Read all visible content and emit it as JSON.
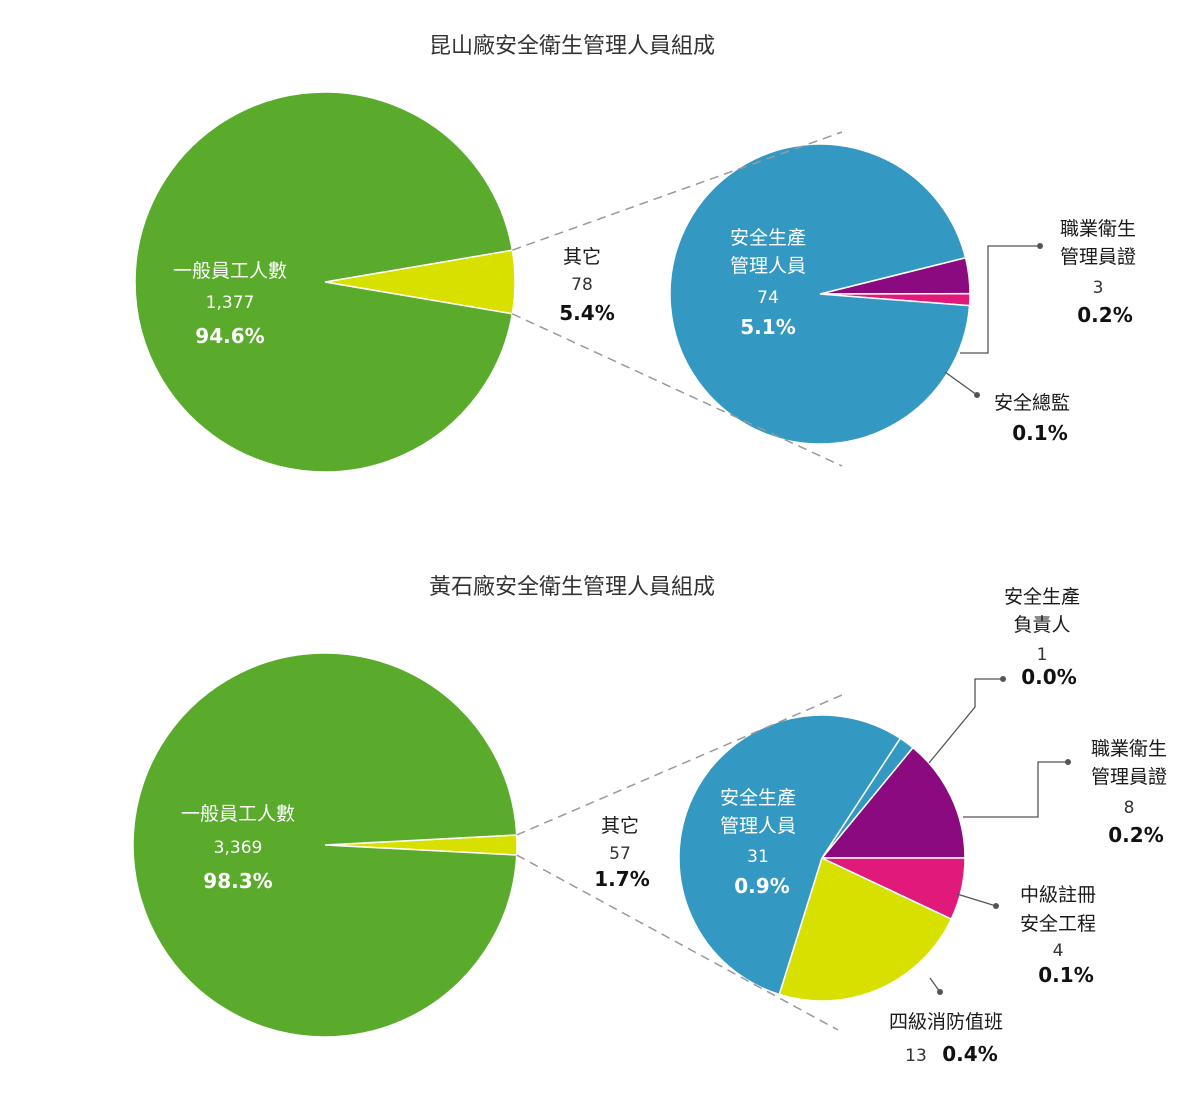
{
  "colors": {
    "green": "#5aaa2c",
    "yellow": "#d8e000",
    "blue": "#3499c2",
    "purple": "#8b0a80",
    "magenta": "#e0197a",
    "dash": "#999999",
    "leader": "#555555"
  },
  "chart_data": [
    {
      "type": "pie",
      "title": "昆山廠安全衛生管理人員組成",
      "main_pie": [
        {
          "name": "一般員工人數",
          "value": 1377,
          "value_label": "1,377",
          "percent_label": "94.6%",
          "color": "#5aaa2c"
        },
        {
          "name": "其它",
          "value": 78,
          "value_label": "78",
          "percent_label": "5.4%",
          "color": "#d8e000"
        }
      ],
      "breakdown_of": "其它",
      "sub_pie": [
        {
          "name": "安全生產管理人員",
          "label_lines": [
            "安全生產",
            "管理人員"
          ],
          "value": 74,
          "value_label": "74",
          "percent_label": "5.1%",
          "color": "#3499c2"
        },
        {
          "name": "職業衛生管理員證",
          "label_lines": [
            "職業衛生",
            "管理員證"
          ],
          "value": 3,
          "value_label": "3",
          "percent_label": "0.2%",
          "color": "#8b0a80"
        },
        {
          "name": "安全總監",
          "label_lines": [
            "安全總監"
          ],
          "value": 1,
          "value_label": "",
          "percent_label": "0.1%",
          "color": "#e0197a"
        }
      ]
    },
    {
      "type": "pie",
      "title": "黃石廠安全衛生管理人員組成",
      "main_pie": [
        {
          "name": "一般員工人數",
          "value": 3369,
          "value_label": "3,369",
          "percent_label": "98.3%",
          "color": "#5aaa2c"
        },
        {
          "name": "其它",
          "value": 57,
          "value_label": "57",
          "percent_label": "1.7%",
          "color": "#d8e000"
        }
      ],
      "breakdown_of": "其它",
      "sub_pie": [
        {
          "name": "安全生產管理人員",
          "label_lines": [
            "安全生產",
            "管理人員"
          ],
          "value": 31,
          "value_label": "31",
          "percent_label": "0.9%",
          "color": "#3499c2"
        },
        {
          "name": "安全生產負責人",
          "label_lines": [
            "安全生產",
            "負責人"
          ],
          "value": 1,
          "value_label": "1",
          "percent_label": "0.0%",
          "color": "#3499c2"
        },
        {
          "name": "職業衛生管理員證",
          "label_lines": [
            "職業衛生",
            "管理員證"
          ],
          "value": 8,
          "value_label": "8",
          "percent_label": "0.2%",
          "color": "#8b0a80"
        },
        {
          "name": "中級註冊安全工程",
          "label_lines": [
            "中級註冊",
            "安全工程"
          ],
          "value": 4,
          "value_label": "4",
          "percent_label": "0.1%",
          "color": "#e0197a"
        },
        {
          "name": "四級消防值班",
          "label_lines": [
            "四級消防值班"
          ],
          "value": 13,
          "value_label": "13",
          "percent_label": "0.4%",
          "color": "#d8e000"
        }
      ]
    }
  ]
}
